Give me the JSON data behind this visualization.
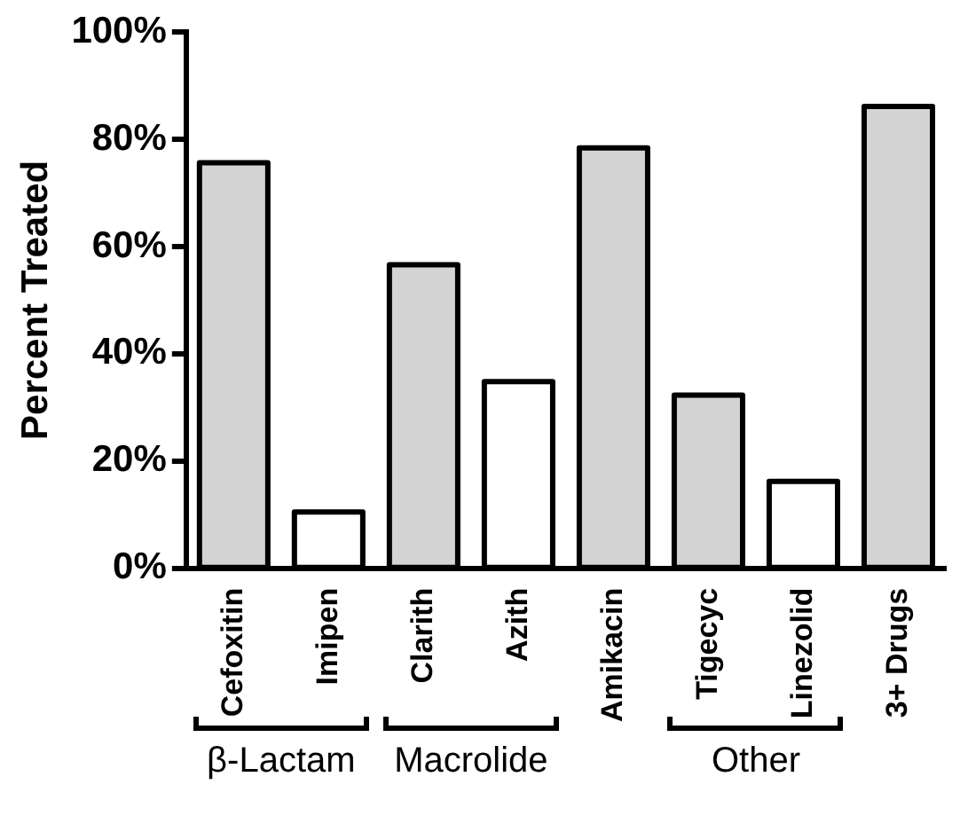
{
  "chart_data": {
    "type": "bar",
    "ylabel": "Percent Treated",
    "categories": [
      "Cefoxitin",
      "Imipen",
      "Clarith",
      "Azith",
      "Amikacin",
      "Tigecyc",
      "Linezolid",
      "3+ Drugs"
    ],
    "values": [
      75.6,
      10.5,
      56.6,
      34.8,
      78.4,
      32.3,
      16.2,
      86.1
    ],
    "colors": [
      "#d3d3d3",
      "#ffffff",
      "#d3d3d3",
      "#ffffff",
      "#d3d3d3",
      "#d3d3d3",
      "#ffffff",
      "#d3d3d3"
    ],
    "ylim": [
      0,
      100
    ],
    "yticks": [
      {
        "value": 0,
        "label": "0%"
      },
      {
        "value": 20,
        "label": "20%"
      },
      {
        "value": 40,
        "label": "40%"
      },
      {
        "value": 60,
        "label": "60%"
      },
      {
        "value": 80,
        "label": "80%"
      },
      {
        "value": 100,
        "label": "100%"
      }
    ],
    "grid": false,
    "legend": false,
    "annotations": [
      "β-Lactam",
      "Macrolide",
      "Other"
    ]
  }
}
